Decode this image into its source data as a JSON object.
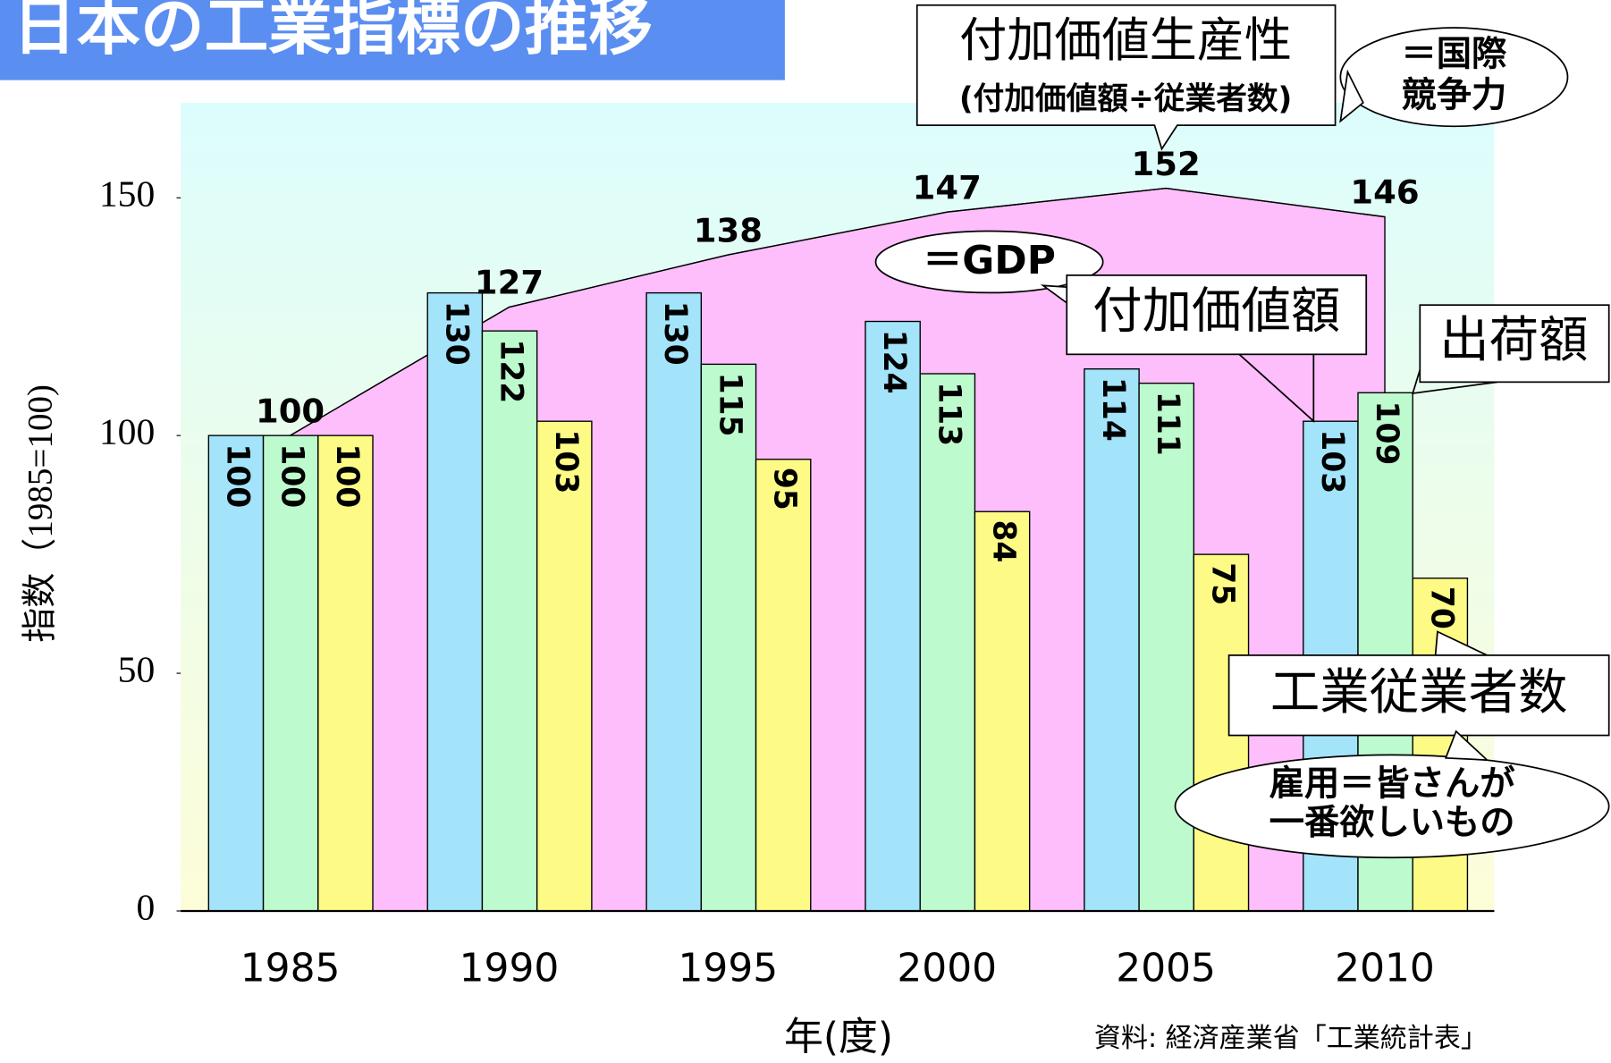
{
  "chart_data": {
    "type": "bar",
    "title": "日本の工業指標の推移",
    "ylabel": "指数（1985=100)",
    "xlabel": "年(度)",
    "source": "資料: 経済産業省「工業統計表」",
    "categories": [
      "1985",
      "1990",
      "1995",
      "2000",
      "2005",
      "2010"
    ],
    "series": [
      {
        "name": "付加価値額",
        "color": "#a3e4fb",
        "values": [
          100,
          130,
          130,
          124,
          114,
          103
        ]
      },
      {
        "name": "出荷額",
        "color": "#bdfbce",
        "values": [
          100,
          122,
          115,
          113,
          111,
          109
        ]
      },
      {
        "name": "工業従業者数",
        "color": "#fdfb86",
        "values": [
          100,
          103,
          95,
          84,
          75,
          70
        ]
      }
    ],
    "line_series": {
      "name": "付加価値生産性",
      "note": "(付加価値額÷従業者数)",
      "color": "#fdbefb",
      "values": [
        100,
        127,
        138,
        147,
        152,
        146
      ]
    },
    "annotations": [
      "＝国際",
      "競争力",
      "＝GDP",
      "雇用＝皆さんが",
      "一番欲しいもの"
    ],
    "ylim": [
      0,
      170
    ],
    "yticks": [
      0,
      50,
      100,
      150
    ],
    "grid": false
  }
}
